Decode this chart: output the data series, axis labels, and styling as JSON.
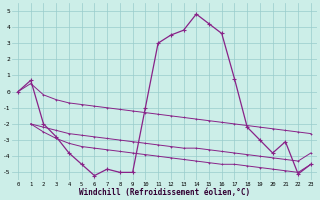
{
  "xlabel": "Windchill (Refroidissement éolien,°C)",
  "xlim": [
    -0.5,
    23.5
  ],
  "ylim": [
    -5.5,
    5.5
  ],
  "yticks": [
    -5,
    -4,
    -3,
    -2,
    -1,
    0,
    1,
    2,
    3,
    4,
    5
  ],
  "xticks": [
    0,
    1,
    2,
    3,
    4,
    5,
    6,
    7,
    8,
    9,
    10,
    11,
    12,
    13,
    14,
    15,
    16,
    17,
    18,
    19,
    20,
    21,
    22,
    23
  ],
  "background_color": "#cceee8",
  "grid_color": "#99cccc",
  "line_color": "#882288",
  "line1": [
    0.0,
    0.7,
    -2.0,
    -2.8,
    -3.8,
    -4.5,
    -5.2,
    -4.8,
    -5.0,
    -5.0,
    -1.0,
    3.0,
    3.5,
    3.8,
    4.8,
    4.2,
    3.6,
    0.8,
    -2.2,
    -3.0,
    -3.8,
    -3.1,
    -5.1,
    -4.5
  ],
  "line2_x": [
    0,
    1,
    2,
    3,
    4,
    5,
    6,
    7,
    8,
    9,
    10,
    11,
    12,
    13,
    14,
    15,
    16,
    17,
    18,
    19,
    20,
    21,
    22,
    23
  ],
  "line2": [
    0.0,
    0.5,
    -0.2,
    -0.5,
    -0.7,
    -0.8,
    -0.9,
    -1.0,
    -1.1,
    -1.2,
    -1.3,
    -1.4,
    -1.5,
    -1.6,
    -1.7,
    -1.8,
    -1.9,
    -2.0,
    -2.1,
    -2.2,
    -2.3,
    -2.4,
    -2.5,
    -2.6
  ],
  "line3_x": [
    1,
    2,
    3,
    4,
    5,
    6,
    7,
    8,
    9,
    10,
    11,
    12,
    13,
    14,
    15,
    16,
    17,
    18,
    19,
    20,
    21,
    22,
    23
  ],
  "line3": [
    -2.0,
    -2.2,
    -2.4,
    -2.6,
    -2.7,
    -2.8,
    -2.9,
    -3.0,
    -3.1,
    -3.2,
    -3.3,
    -3.4,
    -3.5,
    -3.5,
    -3.6,
    -3.7,
    -3.8,
    -3.9,
    -4.0,
    -4.1,
    -4.2,
    -4.3,
    -3.8
  ],
  "line4_x": [
    1,
    2,
    3,
    4,
    5,
    6,
    7,
    8,
    9,
    10,
    11,
    12,
    13,
    14,
    15,
    16,
    17,
    18,
    19,
    20,
    21,
    22,
    23
  ],
  "line4": [
    -2.0,
    -2.5,
    -2.9,
    -3.2,
    -3.4,
    -3.5,
    -3.6,
    -3.7,
    -3.8,
    -3.9,
    -4.0,
    -4.1,
    -4.2,
    -4.3,
    -4.4,
    -4.5,
    -4.5,
    -4.6,
    -4.7,
    -4.8,
    -4.9,
    -5.0,
    -4.5
  ]
}
